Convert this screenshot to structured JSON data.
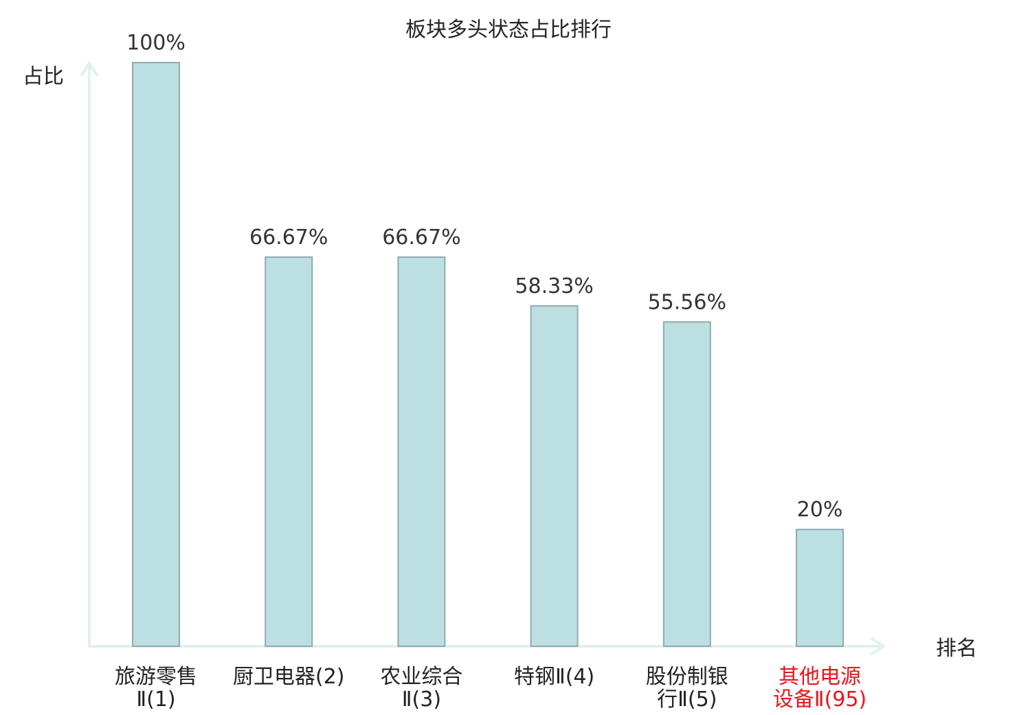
{
  "chart_data": {
    "type": "bar",
    "title": "板块多头状态占比排行",
    "ylabel": "占比",
    "xlabel": "排名",
    "ylim": [
      0,
      100
    ],
    "grid": false,
    "categories": [
      [
        "旅游零售",
        "Ⅱ(1)"
      ],
      [
        "厨卫电器(2)"
      ],
      [
        "农业综合",
        "Ⅱ(3)"
      ],
      [
        "特钢Ⅱ(4)"
      ],
      [
        "股份制银",
        "行Ⅱ(5)"
      ],
      [
        "其他电源",
        "设备Ⅱ(95)"
      ]
    ],
    "values": [
      100,
      66.67,
      66.67,
      58.33,
      55.56,
      20
    ],
    "value_labels": [
      "100%",
      "66.67%",
      "66.67%",
      "58.33%",
      "55.56%",
      "20%"
    ],
    "highlight_index": 5,
    "colors": {
      "bar_fill": "#bce0e2",
      "bar_stroke": "#8faab0",
      "axis": "#def2ee",
      "label_text": "#222222",
      "value_text": "#333333",
      "highlight_text": "#e8151b"
    }
  }
}
